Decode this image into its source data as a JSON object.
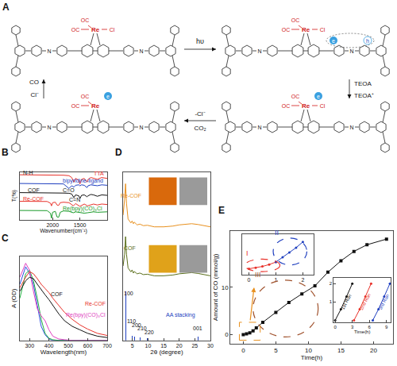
{
  "panel_A": {
    "label": "A",
    "imine_atom": "N",
    "states": [
      {
        "ligands": [
          "OC",
          "OC",
          "Re",
          "Cl"
        ],
        "marks": []
      },
      {
        "ligands": [
          "OC",
          "OC",
          "Re",
          "Cl"
        ],
        "marks": [
          "e",
          "h"
        ]
      },
      {
        "ligands": [
          "OC",
          "OC",
          "Re",
          "Cl"
        ],
        "marks": [
          "e"
        ]
      },
      {
        "ligands": [
          "OC",
          "OC",
          "Re"
        ],
        "marks": [
          "e"
        ]
      }
    ],
    "steps": [
      [
        "hυ"
      ],
      [
        "TEOA",
        "TEOA⁺"
      ],
      [
        "-Cl⁻",
        "CO₂"
      ],
      [
        "Cl⁻",
        "CO"
      ]
    ]
  },
  "chart_data": [
    {
      "panel": "B",
      "type": "line",
      "xlabel": "Wavenumber(cm⁻¹)",
      "ylabel": "T(%)",
      "xlim": [
        2600,
        1000
      ],
      "ylim": [
        0,
        5.2
      ],
      "xticks": [
        2000,
        1500
      ],
      "tick_labels": "x",
      "grid": false,
      "series": [
        {
          "color": "#e8312a",
          "x": [
            2600,
            2400,
            2200,
            2000,
            1800,
            1700,
            1650,
            1610,
            1580,
            1520,
            1500,
            1470,
            1420,
            1370,
            1350,
            1300,
            1250,
            1180,
            1100,
            1000
          ],
          "values": [
            4.9,
            4.9,
            4.88,
            4.88,
            4.85,
            4.8,
            4.6,
            4.1,
            4.5,
            4.3,
            3.9,
            4.4,
            4.5,
            4.1,
            4.4,
            4.6,
            4.5,
            4.4,
            4.6,
            4.5
          ]
        },
        {
          "color": "#1f3fbf",
          "x": [
            2600,
            2400,
            2200,
            2000,
            1800,
            1700,
            1650,
            1610,
            1580,
            1520,
            1500,
            1470,
            1420,
            1370,
            1350,
            1300,
            1250,
            1180,
            1100,
            1000
          ],
          "values": [
            3.95,
            3.95,
            3.95,
            3.93,
            3.9,
            3.4,
            3.7,
            3.55,
            3.75,
            3.8,
            3.7,
            3.8,
            3.75,
            3.5,
            3.7,
            3.8,
            3.75,
            3.7,
            3.8,
            3.75
          ]
        },
        {
          "color": "#111111",
          "x": [
            2600,
            2400,
            2200,
            2000,
            1800,
            1700,
            1650,
            1610,
            1580,
            1520,
            1500,
            1470,
            1420,
            1370,
            1350,
            1300,
            1250,
            1180,
            1100,
            1000
          ],
          "values": [
            2.95,
            2.95,
            2.95,
            2.93,
            2.9,
            2.88,
            2.8,
            2.4,
            2.7,
            2.6,
            2.3,
            2.65,
            2.7,
            2.5,
            2.6,
            2.75,
            2.7,
            2.55,
            2.7,
            2.65
          ]
        },
        {
          "color": "#e8312a",
          "x": [
            2600,
            2400,
            2200,
            2100,
            2040,
            2020,
            2000,
            1950,
            1920,
            1890,
            1860,
            1800,
            1700,
            1620,
            1580,
            1500,
            1420,
            1360,
            1250,
            1180,
            1100,
            1000
          ],
          "values": [
            2.0,
            2.0,
            2.0,
            1.98,
            1.8,
            1.5,
            1.85,
            1.9,
            1.6,
            1.55,
            1.85,
            1.9,
            1.85,
            1.5,
            1.75,
            1.45,
            1.7,
            1.5,
            1.7,
            1.6,
            1.7,
            1.65
          ]
        },
        {
          "color": "#1a9a2a",
          "x": [
            2600,
            2400,
            2200,
            2100,
            2040,
            2020,
            2000,
            1950,
            1920,
            1890,
            1860,
            1800,
            1700,
            1620,
            1580,
            1500,
            1420,
            1360,
            1250,
            1180,
            1100,
            1000
          ],
          "values": [
            1.0,
            1.0,
            1.0,
            0.98,
            0.7,
            0.15,
            0.8,
            0.9,
            0.3,
            0.25,
            0.8,
            0.95,
            0.9,
            0.75,
            0.85,
            0.8,
            0.7,
            0.75,
            0.85,
            0.8,
            0.85,
            0.85
          ]
        }
      ],
      "annotations": [
        {
          "text": "N-H",
          "x": 2450,
          "y": 5.1,
          "color": "#111111"
        },
        {
          "text": "TTA",
          "x": 1150,
          "y": 5.05,
          "color": "#e8312a"
        },
        {
          "text": "bipyridine-ligand",
          "x": 1450,
          "y": 4.2,
          "color": "#1f3fbf"
        },
        {
          "text": "C=O",
          "x": 1700,
          "y": 3.2,
          "color": "#111111"
        },
        {
          "text": "COF",
          "x": 2350,
          "y": 3.2,
          "color": "#111111"
        },
        {
          "text": "C=N",
          "x": 1600,
          "y": 2.15,
          "color": "#111111"
        },
        {
          "text": "Re-COF",
          "x": 2350,
          "y": 2.25,
          "color": "#e8312a"
        },
        {
          "text": "Re(bpy)(CO)₃Cl",
          "x": 1450,
          "y": 1.2,
          "color": "#1a9a2a"
        }
      ]
    },
    {
      "panel": "C",
      "type": "line",
      "xlabel": "Wavelength(nm)",
      "ylabel": "A (OD)",
      "xlim": [
        250,
        700
      ],
      "ylim": [
        0,
        1.2
      ],
      "xticks": [
        300,
        400,
        500,
        600,
        700
      ],
      "tick_labels": "x",
      "grid": false,
      "x": [
        250,
        280,
        300,
        320,
        340,
        360,
        380,
        400,
        420,
        450,
        480,
        520,
        560,
        600,
        650,
        700
      ],
      "series": [
        {
          "color": "#3050e0",
          "values": [
            0.8,
            1.05,
            0.95,
            0.8,
            0.5,
            0.2,
            0.08,
            0.02,
            0,
            0,
            0,
            0,
            0,
            0,
            0,
            0
          ]
        },
        {
          "color": "#20b040",
          "values": [
            0.6,
            0.95,
            1.0,
            0.85,
            0.6,
            0.3,
            0.1,
            0.03,
            0.01,
            0,
            0,
            0,
            0,
            0,
            0,
            0
          ]
        },
        {
          "color": "#e040c0",
          "values": [
            0.9,
            1.1,
            1.0,
            0.7,
            0.45,
            0.35,
            0.28,
            0.15,
            0.06,
            0.02,
            0.01,
            0,
            0,
            0,
            0,
            0
          ]
        },
        {
          "color": "#111111",
          "values": [
            0.7,
            0.85,
            0.9,
            0.88,
            0.8,
            0.72,
            0.65,
            0.58,
            0.5,
            0.38,
            0.28,
            0.2,
            0.15,
            0.1,
            0.06,
            0.04
          ]
        },
        {
          "color": "#e8312a",
          "values": [
            0.75,
            0.9,
            0.98,
            0.95,
            0.88,
            0.8,
            0.74,
            0.68,
            0.6,
            0.5,
            0.4,
            0.3,
            0.22,
            0.16,
            0.1,
            0.07
          ]
        }
      ],
      "annotations": [
        {
          "text": "COF",
          "x": 440,
          "y": 0.66,
          "color": "#111111"
        },
        {
          "text": "Re-COF",
          "x": 640,
          "y": 0.52,
          "color": "#e8312a"
        },
        {
          "text": "Re(bpy)(CO)₃Cl",
          "x": 590,
          "y": 0.36,
          "color": "#e040c0"
        }
      ]
    },
    {
      "panel": "D",
      "type": "line",
      "xlabel": "2θ (degree)",
      "xlim": [
        2,
        30
      ],
      "ylim": [
        0,
        4.3
      ],
      "xticks": [
        5,
        10,
        15,
        20,
        25,
        30
      ],
      "tick_labels": "x",
      "grid": false,
      "series": [
        {
          "color": "#e8901e",
          "x": [
            2,
            2.5,
            2.8,
            3.1,
            3.6,
            4.5,
            4.9,
            5.3,
            5.6,
            6.5,
            7.4,
            8.5,
            9.8,
            12,
            15,
            18,
            20,
            22,
            24,
            26,
            28,
            30
          ],
          "values": [
            3.2,
            3.6,
            4.0,
            3.5,
            3.1,
            3.0,
            3.05,
            2.98,
            3.02,
            2.95,
            2.97,
            2.93,
            2.94,
            2.9,
            2.9,
            2.92,
            2.95,
            2.97,
            2.98,
            2.96,
            2.93,
            2.9
          ]
        },
        {
          "color": "#5a6e1a",
          "x": [
            2,
            2.5,
            2.8,
            3.1,
            3.6,
            4.5,
            4.9,
            5.3,
            5.6,
            6.5,
            7.4,
            8.5,
            9.8,
            12,
            15,
            18,
            20,
            22,
            24,
            26,
            28,
            30
          ],
          "values": [
            1.9,
            2.2,
            2.65,
            2.2,
            1.85,
            1.75,
            1.8,
            1.72,
            1.76,
            1.7,
            1.72,
            1.68,
            1.69,
            1.65,
            1.65,
            1.67,
            1.7,
            1.72,
            1.73,
            1.71,
            1.68,
            1.65
          ]
        },
        {
          "type": "bar",
          "color": "#2040c0",
          "x": [
            2.8,
            4.9,
            5.6,
            7.4,
            9.8,
            26.0
          ],
          "values": [
            1.25,
            0.12,
            0.09,
            0.07,
            0.05,
            0.1
          ]
        }
      ],
      "annotations": [
        {
          "text": "Re-COF",
          "x": 4.6,
          "y": 3.7,
          "color": "#e8901e"
        },
        {
          "text": "COF",
          "x": 4.2,
          "y": 2.35,
          "color": "#5a6e1a"
        },
        {
          "text": "100",
          "x": 3.9,
          "y": 1.2,
          "color": "#111111"
        },
        {
          "text": "110",
          "x": 4.7,
          "y": 0.5,
          "color": "#111111"
        },
        {
          "text": "200",
          "x": 6.4,
          "y": 0.4,
          "color": "#111111"
        },
        {
          "text": "210",
          "x": 8.1,
          "y": 0.3,
          "color": "#111111"
        },
        {
          "text": "220",
          "x": 10.4,
          "y": 0.2,
          "color": "#111111"
        },
        {
          "text": "001",
          "x": 26.0,
          "y": 0.3,
          "color": "#111111"
        },
        {
          "text": "AA stacking",
          "x": 20.5,
          "y": 0.65,
          "color": "#2040c0"
        }
      ]
    },
    {
      "panel": "E",
      "type": "line",
      "xlabel": "Time(h)",
      "ylabel": "Amount of CO (mmol/g)",
      "xlim": [
        -2,
        23
      ],
      "ylim": [
        -2,
        22
      ],
      "xticks": [
        0,
        5,
        10,
        15,
        20
      ],
      "yticks": [
        0,
        10
      ],
      "grid": false,
      "series": [
        {
          "color": "#111111",
          "marker": "square",
          "x": [
            0,
            0.5,
            1,
            1.5,
            2,
            3,
            5,
            7,
            9,
            11,
            13,
            15,
            17,
            19,
            22
          ],
          "values": [
            0,
            0.15,
            0.35,
            0.8,
            1.4,
            2.6,
            4.7,
            6.8,
            8.6,
            10.3,
            13.2,
            15.6,
            17.6,
            19.0,
            20.2
          ]
        }
      ],
      "regions": [
        {
          "text": "III",
          "color": "#a0522d",
          "x": [
            1.5,
            11.5
          ],
          "y": [
            -0.5,
            11.5
          ]
        }
      ],
      "highlight_box": {
        "color": "#e8901e",
        "x": [
          -0.6,
          2.6
        ],
        "y": [
          -1.2,
          2.6
        ]
      }
    },
    {
      "type": "line",
      "xlim": [
        -0.25,
        2.4
      ],
      "ylim": [
        -0.3,
        1.8
      ],
      "xticks": [
        0,
        1,
        2
      ],
      "tick_labels": "x",
      "grid": false,
      "series": [
        {
          "color": "#e8312a",
          "marker": "circle",
          "x": [
            0,
            0.25,
            0.5,
            0.75,
            1
          ],
          "values": [
            0,
            0.05,
            0.12,
            0.22,
            0.35
          ]
        },
        {
          "color": "#1f3fbf",
          "marker": "circle",
          "x": [
            1,
            1.25,
            1.5,
            1.75,
            2
          ],
          "values": [
            0.35,
            0.6,
            0.85,
            1.1,
            1.4
          ]
        }
      ],
      "regions": [
        {
          "text": "I",
          "color": "#e8312a",
          "x": [
            -0.15,
            1.15
          ],
          "y": [
            -0.15,
            0.5
          ]
        },
        {
          "text": "II",
          "color": "#1f3fbf",
          "x": [
            0.9,
            2.15
          ],
          "y": [
            0.2,
            1.6
          ]
        }
      ]
    },
    {
      "type": "line",
      "xlabel": "Time(h)",
      "xlim": [
        -0.3,
        9.8
      ],
      "ylim": [
        -0.1,
        2.3
      ],
      "xticks": [
        0,
        3,
        6,
        9
      ],
      "yticks": [
        1,
        2
      ],
      "grid": false,
      "series": [
        {
          "color": "#111111",
          "marker": "circle",
          "x": [
            0,
            1,
            2,
            3
          ],
          "values": [
            0,
            0.6,
            1.3,
            2.0
          ]
        },
        {
          "color": "#e8312a",
          "marker": "circle",
          "x": [
            3.3,
            4.3,
            5.3,
            6.3
          ],
          "values": [
            0,
            0.6,
            1.3,
            2.0
          ]
        },
        {
          "color": "#1f3fbf",
          "marker": "circle",
          "x": [
            6.6,
            7.6,
            8.6,
            9.6
          ],
          "values": [
            0,
            0.6,
            1.3,
            2.0
          ]
        }
      ],
      "annotations": [
        {
          "text": "1st Run",
          "x": 2.0,
          "y": 1.0,
          "color": "#111111"
        },
        {
          "text": "2nd Run",
          "x": 5.3,
          "y": 1.0,
          "color": "#e8312a"
        },
        {
          "text": "3rd Run",
          "x": 8.6,
          "y": 1.0,
          "color": "#1f3fbf"
        }
      ]
    }
  ]
}
